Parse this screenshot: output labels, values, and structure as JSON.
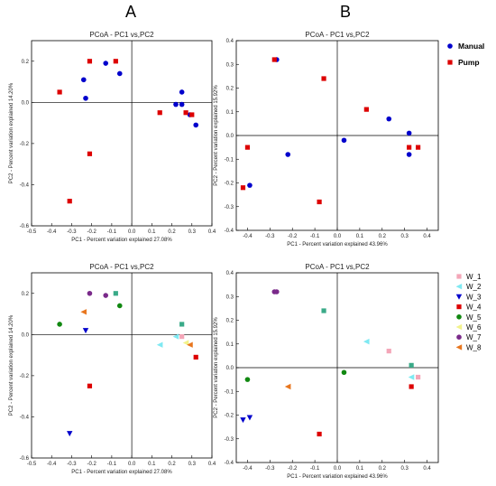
{
  "panel_letters": [
    "A",
    "B"
  ],
  "legend_top": [
    {
      "label": "Manual",
      "color": "#0000cc",
      "marker": "circle"
    },
    {
      "label": "Pump",
      "color": "#dd0000",
      "marker": "square"
    }
  ],
  "legend_bottom": [
    {
      "label": "W_1",
      "color": "#f4a6b8",
      "marker": "square"
    },
    {
      "label": "W_2",
      "color": "#7fe9f2",
      "marker": "triangle-left"
    },
    {
      "label": "W_3",
      "color": "#0000cc",
      "marker": "triangle-down"
    },
    {
      "label": "W_4",
      "color": "#dd0000",
      "marker": "square"
    },
    {
      "label": "W_5",
      "color": "#118811",
      "marker": "circle"
    },
    {
      "label": "W_6",
      "color": "#f2f28a",
      "marker": "triangle-left"
    },
    {
      "label": "W_7",
      "color": "#7a2a8a",
      "marker": "circle"
    },
    {
      "label": "W_8",
      "color": "#e8761e",
      "marker": "triangle-left"
    }
  ],
  "chart_data": [
    {
      "id": "top-left",
      "type": "scatter",
      "title": "PCoA - PC1 vs,PC2",
      "xlabel": "PC1 - Percent variation explained 27.08%",
      "ylabel": "PC2 - Percent variation explained 14.20%",
      "xlim": [
        -0.5,
        0.4
      ],
      "ylim": [
        -0.6,
        0.3
      ],
      "xticks": [
        "-0.5",
        "-0.4",
        "-0.3",
        "-0.2",
        "-0.1",
        "0.0",
        "0.1",
        "0.2",
        "0.3",
        "0.4"
      ],
      "yticks": [
        "-0.6",
        "-0.4",
        "-0.2",
        "0.0",
        "0.2"
      ],
      "series": [
        {
          "name": "Manual",
          "color": "#0000cc",
          "marker": "circle",
          "points": [
            [
              -0.24,
              0.11
            ],
            [
              -0.13,
              0.19
            ],
            [
              -0.06,
              0.14
            ],
            [
              -0.23,
              0.02
            ],
            [
              0.22,
              -0.01
            ],
            [
              0.25,
              0.05
            ],
            [
              0.25,
              -0.01
            ],
            [
              0.29,
              -0.06
            ],
            [
              0.32,
              -0.11
            ]
          ]
        },
        {
          "name": "Pump",
          "color": "#dd0000",
          "marker": "square",
          "points": [
            [
              -0.21,
              0.2
            ],
            [
              -0.08,
              0.2
            ],
            [
              -0.36,
              0.05
            ],
            [
              -0.21,
              -0.25
            ],
            [
              -0.31,
              -0.48
            ],
            [
              0.14,
              -0.05
            ],
            [
              0.27,
              -0.05
            ],
            [
              0.3,
              -0.06
            ]
          ]
        }
      ]
    },
    {
      "id": "top-right",
      "type": "scatter",
      "title": "PCoA - PC1 vs,PC2",
      "xlabel": "PC1 - Percent variation explained 43.96%",
      "ylabel": "PC2 - Percent variation explained 15.92%",
      "xlim": [
        -0.45,
        0.45
      ],
      "ylim": [
        -0.4,
        0.4
      ],
      "xticks": [
        "-0.4",
        "-0.3",
        "-0.2",
        "-0.1",
        "0.0",
        "0.1",
        "0.2",
        "0.3",
        "0.4"
      ],
      "yticks": [
        "-0.4",
        "-0.3",
        "-0.2",
        "-0.1",
        "0.0",
        "0.1",
        "0.2",
        "0.3",
        "0.4"
      ],
      "series": [
        {
          "name": "Manual",
          "color": "#0000cc",
          "marker": "circle",
          "points": [
            [
              -0.27,
              0.32
            ],
            [
              -0.22,
              -0.08
            ],
            [
              -0.39,
              -0.21
            ],
            [
              0.03,
              -0.02
            ],
            [
              0.23,
              0.07
            ],
            [
              0.32,
              0.01
            ],
            [
              0.32,
              -0.08
            ]
          ]
        },
        {
          "name": "Pump",
          "color": "#dd0000",
          "marker": "square",
          "points": [
            [
              -0.28,
              0.32
            ],
            [
              -0.06,
              0.24
            ],
            [
              -0.4,
              -0.05
            ],
            [
              -0.42,
              -0.22
            ],
            [
              -0.08,
              -0.28
            ],
            [
              0.13,
              0.11
            ],
            [
              0.32,
              -0.05
            ],
            [
              0.36,
              -0.05
            ]
          ]
        }
      ]
    },
    {
      "id": "bottom-left",
      "type": "scatter",
      "title": "PCoA - PC1 vs,PC2",
      "xlabel": "PC1 - Percent variation explained 27.08%",
      "ylabel": "PC2 - Percent variation explained 14.20%",
      "xlim": [
        -0.5,
        0.4
      ],
      "ylim": [
        -0.6,
        0.3
      ],
      "xticks": [
        "-0.5",
        "-0.4",
        "-0.3",
        "-0.2",
        "-0.1",
        "0.0",
        "0.1",
        "0.2",
        "0.3",
        "0.4"
      ],
      "yticks": [
        "-0.6",
        "-0.4",
        "-0.2",
        "0.0",
        "0.2"
      ],
      "series": [
        {
          "name": "W_1",
          "color": "#f4a6b8",
          "marker": "square",
          "points": [
            [
              0.25,
              -0.01
            ]
          ]
        },
        {
          "name": "W_2",
          "color": "#7fe9f2",
          "marker": "triangle-left",
          "points": [
            [
              0.14,
              -0.05
            ],
            [
              0.22,
              -0.01
            ]
          ]
        },
        {
          "name": "W_3",
          "color": "#0000cc",
          "marker": "triangle-down",
          "points": [
            [
              -0.23,
              0.02
            ],
            [
              -0.31,
              -0.48
            ]
          ]
        },
        {
          "name": "W_4",
          "color": "#dd0000",
          "marker": "square",
          "points": [
            [
              -0.21,
              -0.25
            ],
            [
              0.32,
              -0.11
            ]
          ]
        },
        {
          "name": "W_5",
          "color": "#118811",
          "marker": "circle",
          "points": [
            [
              -0.36,
              0.05
            ],
            [
              -0.06,
              0.14
            ]
          ]
        },
        {
          "name": "W_6",
          "color": "#f2f28a",
          "marker": "triangle-left",
          "points": [
            [
              0.27,
              -0.04
            ]
          ]
        },
        {
          "name": "W_7",
          "color": "#7a2a8a",
          "marker": "circle",
          "points": [
            [
              -0.21,
              0.2
            ],
            [
              -0.13,
              0.19
            ]
          ]
        },
        {
          "name": "W_8",
          "color": "#e8761e",
          "marker": "triangle-left",
          "points": [
            [
              -0.24,
              0.11
            ],
            [
              0.29,
              -0.05
            ]
          ]
        },
        {
          "name": "",
          "color": "#3aaa88",
          "marker": "square",
          "points": [
            [
              -0.08,
              0.2
            ],
            [
              0.25,
              0.05
            ]
          ]
        }
      ]
    },
    {
      "id": "bottom-right",
      "type": "scatter",
      "title": "PCoA - PC1 vs,PC2",
      "xlabel": "PC1 - Percent variation explained 43.96%",
      "ylabel": "PC2 - Percent variation explained 15.92%",
      "xlim": [
        -0.45,
        0.45
      ],
      "ylim": [
        -0.4,
        0.4
      ],
      "xticks": [
        "-0.4",
        "-0.3",
        "-0.2",
        "-0.1",
        "0.0",
        "0.1",
        "0.2",
        "0.3",
        "0.4"
      ],
      "yticks": [
        "-0.4",
        "-0.3",
        "-0.2",
        "-0.1",
        "0.0",
        "0.1",
        "0.2",
        "0.3",
        "0.4"
      ],
      "series": [
        {
          "name": "W_1",
          "color": "#f4a6b8",
          "marker": "square",
          "points": [
            [
              0.23,
              0.07
            ],
            [
              0.36,
              -0.04
            ]
          ]
        },
        {
          "name": "W_2",
          "color": "#7fe9f2",
          "marker": "triangle-left",
          "points": [
            [
              0.13,
              0.11
            ],
            [
              0.33,
              -0.04
            ]
          ]
        },
        {
          "name": "W_3",
          "color": "#0000cc",
          "marker": "triangle-down",
          "points": [
            [
              -0.42,
              -0.22
            ],
            [
              -0.39,
              -0.21
            ]
          ]
        },
        {
          "name": "W_4",
          "color": "#dd0000",
          "marker": "square",
          "points": [
            [
              -0.08,
              -0.28
            ],
            [
              0.33,
              -0.08
            ]
          ]
        },
        {
          "name": "W_5",
          "color": "#118811",
          "marker": "circle",
          "points": [
            [
              -0.4,
              -0.05
            ],
            [
              0.03,
              -0.02
            ]
          ]
        },
        {
          "name": "W_7",
          "color": "#7a2a8a",
          "marker": "circle",
          "points": [
            [
              -0.28,
              0.32
            ],
            [
              -0.27,
              0.32
            ]
          ]
        },
        {
          "name": "W_8",
          "color": "#e8761e",
          "marker": "triangle-left",
          "points": [
            [
              -0.22,
              -0.08
            ]
          ]
        },
        {
          "name": "",
          "color": "#3aaa88",
          "marker": "square",
          "points": [
            [
              -0.06,
              0.24
            ],
            [
              0.33,
              0.01
            ]
          ]
        }
      ]
    }
  ]
}
